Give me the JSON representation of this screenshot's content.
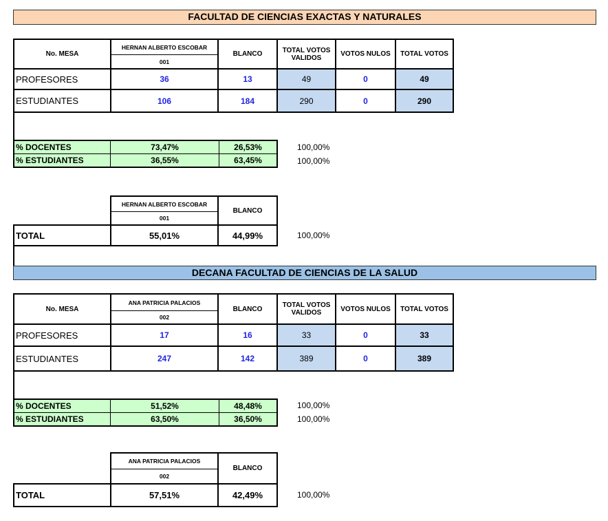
{
  "section1": {
    "title": "FACULTAD DE CIENCIAS EXACTAS Y NATURALES",
    "header": {
      "mesa": "No. MESA",
      "candidate": "HERNAN ALBERTO ESCOBAR",
      "candidate_no": "001",
      "blanco": "BLANCO",
      "total_validos": "TOTAL VOTOS VALIDOS",
      "nulos": "VOTOS NULOS",
      "total": "TOTAL VOTOS"
    },
    "rows": [
      {
        "label": "PROFESORES",
        "candidate": "36",
        "blanco": "13",
        "validos": "49",
        "nulos": "0",
        "total": "49"
      },
      {
        "label": "ESTUDIANTES",
        "candidate": "106",
        "blanco": "184",
        "validos": "290",
        "nulos": "0",
        "total": "290"
      }
    ],
    "pct_rows": [
      {
        "label": "% DOCENTES",
        "candidate": "73,47%",
        "blanco": "26,53%",
        "sum": "100,00%"
      },
      {
        "label": "% ESTUDIANTES",
        "candidate": "36,55%",
        "blanco": "63,45%",
        "sum": "100,00%"
      }
    ],
    "total": {
      "label": "TOTAL",
      "candidate": "55,01%",
      "blanco": "44,99%",
      "sum": "100,00%"
    }
  },
  "section2": {
    "title": "DECANA FACULTAD DE CIENCIAS DE LA SALUD",
    "header": {
      "mesa": "No. MESA",
      "candidate": "ANA PATRICIA PALACIOS",
      "candidate_no": "002",
      "blanco": "BLANCO",
      "total_validos": "TOTAL VOTOS VALIDOS",
      "nulos": "VOTOS NULOS",
      "total": "TOTAL VOTOS"
    },
    "rows": [
      {
        "label": "PROFESORES",
        "candidate": "17",
        "blanco": "16",
        "validos": "33",
        "nulos": "0",
        "total": "33"
      },
      {
        "label": "ESTUDIANTES",
        "candidate": "247",
        "blanco": "142",
        "validos": "389",
        "nulos": "0",
        "total": "389"
      }
    ],
    "pct_rows": [
      {
        "label": "% DOCENTES",
        "candidate": "51,52%",
        "blanco": "48,48%",
        "sum": "100,00%"
      },
      {
        "label": "% ESTUDIANTES",
        "candidate": "63,50%",
        "blanco": "36,50%",
        "sum": "100,00%"
      }
    ],
    "total": {
      "label": "TOTAL",
      "candidate": "57,51%",
      "blanco": "42,49%",
      "sum": "100,00%"
    }
  }
}
